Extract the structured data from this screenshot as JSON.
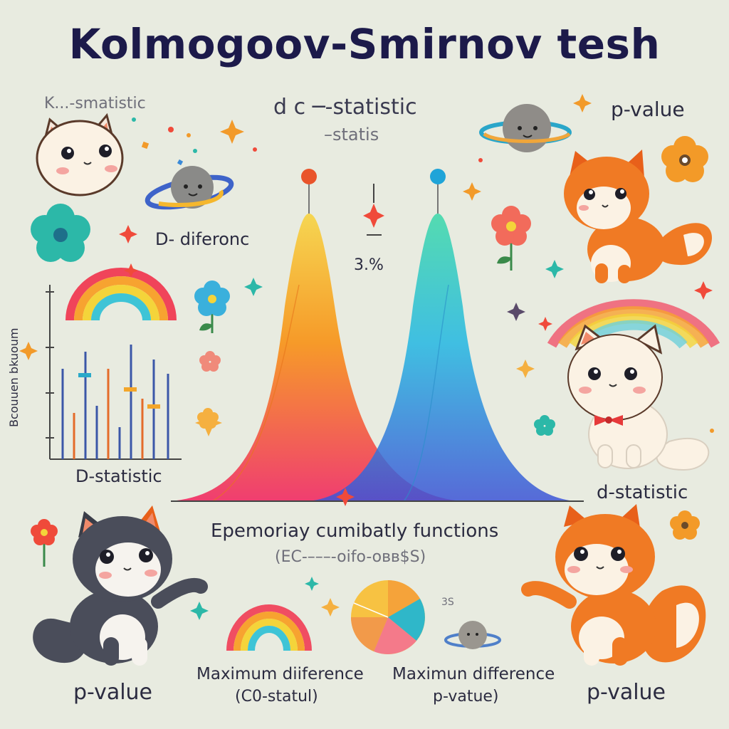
{
  "title": "Kolmogoov-Smirnov tesh",
  "labels": {
    "top_left_statistic": "K...-smatistic",
    "center_statistic": "d c ─-statistic",
    "center_statistic_sub": "–statis",
    "top_right_pvalue": "p-value",
    "d_difference": "D- diferonc",
    "percent": "3.%",
    "left_axis_label": "Bcouuen bkuoum",
    "d_statistic_left": "D-statistic",
    "d_statistic_right": "d-statistic",
    "ecdf_title": "Epemoriay cumibatly functions",
    "ecdf_sub": "(EC-–––-oifo-oʙʙ$S)",
    "pie_side_note": "3S",
    "max_diff_left": "Maximum diiference",
    "max_diff_left_sub": "(C0-statul)",
    "max_diff_right": "Maximun difference",
    "max_diff_right_sub": "p-vatue)",
    "p_value_left": "p-value",
    "p_value_right": "p-value"
  },
  "colors": {
    "background": "#e8ebe0",
    "curve_warm_top": "#f6c431",
    "curve_warm_mid": "#f7851f",
    "curve_warm_base": "#f0356a",
    "curve_cool_top": "#2fd1a2",
    "curve_cool_mid": "#26b5e0",
    "curve_cool_base": "#3a5ad8",
    "cat_orange": "#f07a24",
    "cat_gray": "#4a4d5a",
    "cat_white": "#fbf4ea"
  },
  "icons": [
    "cat-white-top-left-icon",
    "planet-left-icon",
    "planet-right-icon",
    "flower-teal-icon",
    "flower-blue-icon",
    "flower-red-icon",
    "flower-orange-icon",
    "rainbow-left-icon",
    "rainbow-right-icon",
    "rainbow-bottom-icon",
    "cat-orange-top-right-icon",
    "cat-white-bowtie-icon",
    "cat-gray-bottom-left-icon",
    "cat-orange-bottom-right-icon",
    "pie-chart-icon",
    "sparkle-icon"
  ]
}
